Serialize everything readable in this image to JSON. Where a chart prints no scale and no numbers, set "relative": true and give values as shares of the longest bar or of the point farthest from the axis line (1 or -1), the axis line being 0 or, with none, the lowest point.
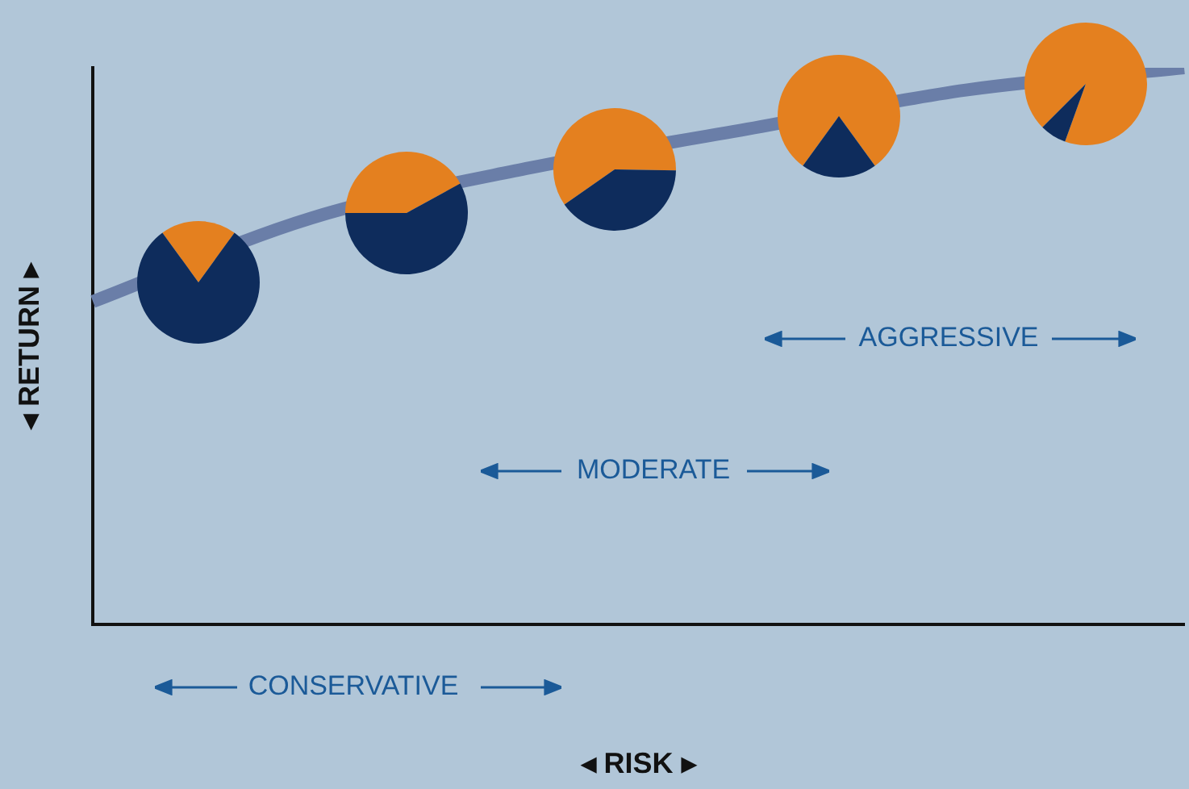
{
  "chart_data": [
    {
      "type": "line",
      "relative": true,
      "xlabel": "◂ RISK ▸",
      "ylabel": "◂ RETURN ▸",
      "categories": [
        null,
        null,
        null,
        null,
        null,
        null
      ],
      "series": [
        {
          "color": "#6a7ea8",
          "values": [
            0.58,
            0.73,
            0.82,
            0.89,
            0.96,
            1
          ]
        }
      ],
      "marker": "none",
      "grid": false,
      "legend": false,
      "annotations": [
        "CONSERVATIVE",
        "MODERATE",
        "AGGRESSIVE"
      ]
    },
    {
      "type": "pie",
      "categories": [
        null,
        null
      ],
      "values": [
        20,
        80
      ],
      "colors": [
        "#e4801f",
        "#0e2c5c"
      ],
      "legend": false
    },
    {
      "type": "pie",
      "categories": [
        null,
        null
      ],
      "values": [
        42,
        58
      ],
      "colors": [
        "#e4801f",
        "#0e2c5c"
      ],
      "legend": false
    },
    {
      "type": "pie",
      "categories": [
        null,
        null
      ],
      "values": [
        60,
        40
      ],
      "colors": [
        "#e4801f",
        "#0e2c5c"
      ],
      "legend": false
    },
    {
      "type": "pie",
      "categories": [
        null,
        null
      ],
      "values": [
        80,
        20
      ],
      "colors": [
        "#e4801f",
        "#0e2c5c"
      ],
      "legend": false
    },
    {
      "type": "pie",
      "categories": [
        null,
        null
      ],
      "values": [
        93,
        7
      ],
      "colors": [
        "#e4801f",
        "#0e2c5c"
      ],
      "legend": false
    }
  ]
}
